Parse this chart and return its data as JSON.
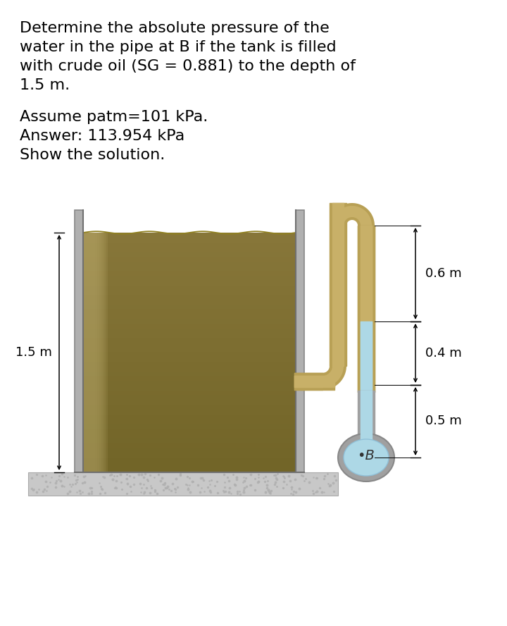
{
  "title_text_lines": [
    "Determine the absolute pressure of the",
    "water in the pipe at B if the tank is filled",
    "with crude oil (SG = 0.881) to the depth of",
    "1.5 m."
  ],
  "subtitle_lines": [
    "Assume patm=101 kPa.",
    "Answer: 113.954 kPa",
    "Show the solution."
  ],
  "bg_color": "#ffffff",
  "text_color": "#000000",
  "oil_color_dark": "#7a6a30",
  "oil_color_mid": "#8e7c3c",
  "oil_color_light": "#a08840",
  "wall_color": "#b0b0b0",
  "wall_edge": "#888888",
  "ground_color": "#c8c8c8",
  "ground_edge": "#aaaaaa",
  "pipe_outer": "#b8a055",
  "pipe_inner_oil": "#c8b068",
  "pipe_inner_water": "#add8e6",
  "bulb_outer": "#a0a0a0",
  "bulb_inner": "#add8e6",
  "dim_color": "#000000",
  "label_15m": "1.5 m",
  "label_06m": "0.6 m",
  "label_04m": "0.4 m",
  "label_05m": "0.5 m",
  "label_B": "•B",
  "title_fontsize": 16,
  "sub_fontsize": 16,
  "dim_fontsize": 13
}
